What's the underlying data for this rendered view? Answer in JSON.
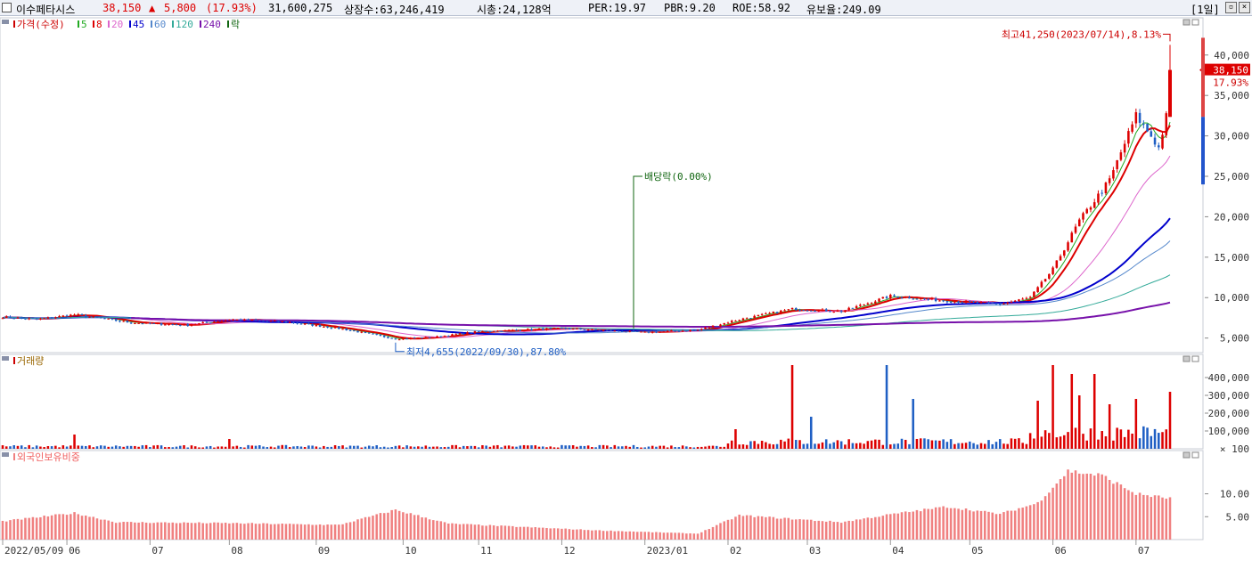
{
  "header": {
    "stock_name": "이수페타시스",
    "price": "38,150",
    "change_arrow": "▲",
    "change": "5,800",
    "change_pct": "(17.93%)",
    "volume": "31,600,275",
    "shares_listed": "상장수:63,246,419",
    "market_cap": "시총:24,128억",
    "per": "PER:19.97",
    "pbr": "PBR:9.20",
    "roe": "ROE:58.92",
    "float_ratio": "유보율:249.09",
    "period_button": "[1일]",
    "colors": {
      "up": "#dd0000",
      "down": "#1f5fc4"
    }
  },
  "price_panel": {
    "legend": [
      {
        "label": "가격(수정)",
        "color": "#cc0000"
      },
      {
        "label": "5",
        "color": "#22aa22"
      },
      {
        "label": "8",
        "color": "#dd0000"
      },
      {
        "label": "20",
        "color": "#dd66cc"
      },
      {
        "label": "45",
        "color": "#0000cc"
      },
      {
        "label": "60",
        "color": "#5588cc"
      },
      {
        "label": "120",
        "color": "#33aa99"
      },
      {
        "label": "240",
        "color": "#7711aa"
      },
      {
        "label": "락",
        "color": "#116611"
      }
    ],
    "high_label": "최고41,250(2023/07/14),8.13%",
    "low_label": "최저4,655(2022/09/30),87.80%",
    "dividend_label": "배당락(0.00%)",
    "current_price_label": "38,150",
    "current_change_label": "17.93%"
  },
  "volume_panel": {
    "title": "거래량",
    "unit": "× 100"
  },
  "foreign_panel": {
    "title": "외국인보유비중"
  },
  "x_axis_labels": [
    "2022/05/09",
    "06",
    "07",
    "08",
    "09",
    "10",
    "11",
    "12",
    "2023/01",
    "02",
    "03",
    "04",
    "05",
    "06",
    "07"
  ],
  "chart_data": [
    {
      "type": "candlestick",
      "ylim": [
        3200,
        43500
      ],
      "y_ticks": [
        "5,000",
        "10,000",
        "15,000",
        "20,000",
        "25,000",
        "30,000",
        "35,000",
        "40,000"
      ],
      "y_tick_values": [
        5000,
        10000,
        15000,
        20000,
        25000,
        30000,
        35000,
        40000
      ],
      "x_range": [
        "2022/05/09",
        "2023/07/14"
      ],
      "close_anchors": [
        {
          "date": "2022/05/09",
          "value": 7600
        },
        {
          "date": "2022/05/20",
          "value": 7300
        },
        {
          "date": "2022/06/03",
          "value": 7900
        },
        {
          "date": "2022/06/24",
          "value": 6900
        },
        {
          "date": "2022/07/15",
          "value": 6600
        },
        {
          "date": "2022/08/01",
          "value": 7300
        },
        {
          "date": "2022/08/22",
          "value": 7000
        },
        {
          "date": "2022/09/09",
          "value": 6200
        },
        {
          "date": "2022/09/30",
          "value": 4900
        },
        {
          "date": "2022/10/14",
          "value": 5100
        },
        {
          "date": "2022/11/01",
          "value": 5800
        },
        {
          "date": "2022/12/01",
          "value": 6200
        },
        {
          "date": "2023/01/02",
          "value": 5700
        },
        {
          "date": "2023/01/20",
          "value": 6000
        },
        {
          "date": "2023/02/03",
          "value": 7200
        },
        {
          "date": "2023/02/24",
          "value": 8600
        },
        {
          "date": "2023/03/15",
          "value": 8300
        },
        {
          "date": "2023/04/03",
          "value": 10200
        },
        {
          "date": "2023/04/24",
          "value": 9600
        },
        {
          "date": "2023/05/12",
          "value": 9200
        },
        {
          "date": "2023/05/24",
          "value": 10000
        },
        {
          "date": "2023/06/01",
          "value": 13500
        },
        {
          "date": "2023/06/12",
          "value": 19500
        },
        {
          "date": "2023/06/22",
          "value": 24500
        },
        {
          "date": "2023/07/03",
          "value": 32500
        },
        {
          "date": "2023/07/07",
          "value": 30000
        },
        {
          "date": "2023/07/11",
          "value": 28500
        },
        {
          "date": "2023/07/13",
          "value": 32350
        },
        {
          "date": "2023/07/14",
          "value": 38150
        }
      ],
      "moving_averages": [
        5,
        8,
        20,
        45,
        60,
        120,
        240
      ],
      "ma_end_values": {
        "5": 30800,
        "8": 30500,
        "20": 27500,
        "45": 19800,
        "60": 17000,
        "120": 12800,
        "240": 9400
      },
      "high": {
        "date": "2023/07/14",
        "value": 41250
      },
      "low": {
        "date": "2022/09/30",
        "value": 4655
      },
      "dividend_date": "2022/12/28"
    },
    {
      "type": "bar",
      "name": "거래량",
      "ylim": [
        0,
        480000
      ],
      "y_ticks": [
        "100,000",
        "200,000",
        "300,000",
        "400,000"
      ],
      "y_tick_values": [
        100000,
        200000,
        300000,
        400000
      ],
      "spikes": [
        {
          "date": "2022/06/03",
          "value": 80000
        },
        {
          "date": "2022/08/01",
          "value": 55000
        },
        {
          "date": "2023/02/03",
          "value": 110000
        },
        {
          "date": "2023/02/24",
          "value": 470000
        },
        {
          "date": "2023/03/03",
          "value": 180000
        },
        {
          "date": "2023/03/31",
          "value": 470000
        },
        {
          "date": "2023/04/11",
          "value": 280000
        },
        {
          "date": "2023/05/26",
          "value": 270000
        },
        {
          "date": "2023/06/01",
          "value": 470000
        },
        {
          "date": "2023/06/08",
          "value": 420000
        },
        {
          "date": "2023/06/12",
          "value": 300000
        },
        {
          "date": "2023/06/16",
          "value": 420000
        },
        {
          "date": "2023/06/22",
          "value": 250000
        },
        {
          "date": "2023/07/03",
          "value": 280000
        },
        {
          "date": "2023/07/14",
          "value": 320000
        }
      ]
    },
    {
      "type": "bar",
      "name": "외국인보유비중",
      "ylim": [
        0,
        17.5
      ],
      "y_ticks": [
        "5.00",
        "10.00"
      ],
      "y_tick_values": [
        5,
        10
      ],
      "anchors": [
        {
          "date": "2022/05/09",
          "value": 4.0
        },
        {
          "date": "2022/06/03",
          "value": 5.8
        },
        {
          "date": "2022/06/20",
          "value": 3.8
        },
        {
          "date": "2022/08/01",
          "value": 3.6
        },
        {
          "date": "2022/09/09",
          "value": 3.2
        },
        {
          "date": "2022/09/30",
          "value": 6.5
        },
        {
          "date": "2022/10/20",
          "value": 3.5
        },
        {
          "date": "2022/12/15",
          "value": 2.0
        },
        {
          "date": "2023/01/20",
          "value": 1.3
        },
        {
          "date": "2023/02/06",
          "value": 5.3
        },
        {
          "date": "2023/03/15",
          "value": 3.8
        },
        {
          "date": "2023/04/03",
          "value": 5.5
        },
        {
          "date": "2023/04/24",
          "value": 7.2
        },
        {
          "date": "2023/05/12",
          "value": 5.6
        },
        {
          "date": "2023/05/26",
          "value": 8.0
        },
        {
          "date": "2023/06/07",
          "value": 15.0
        },
        {
          "date": "2023/06/20",
          "value": 14.0
        },
        {
          "date": "2023/07/03",
          "value": 10.0
        },
        {
          "date": "2023/07/14",
          "value": 9.0
        }
      ]
    }
  ]
}
